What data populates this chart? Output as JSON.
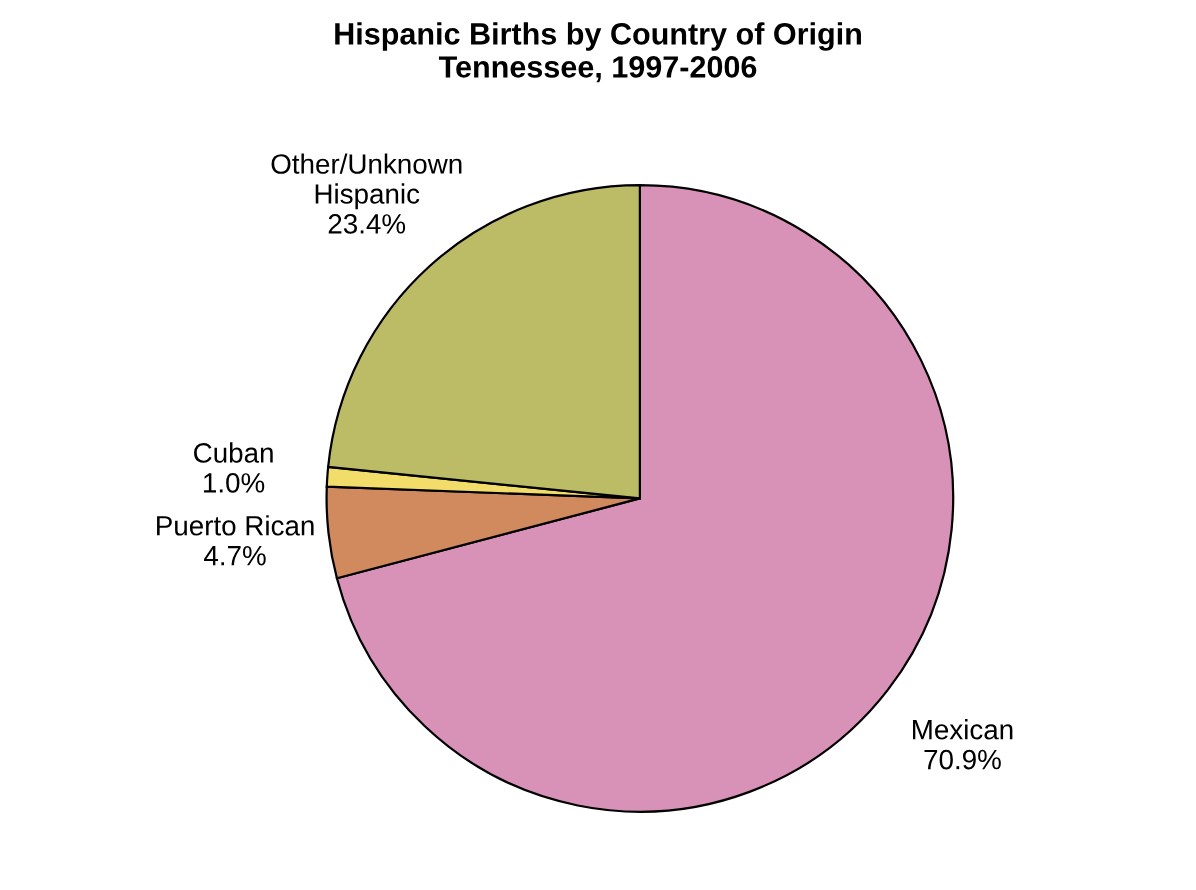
{
  "chart_data": {
    "type": "pie",
    "title": "Hispanic Births by Country of Origin\nTennessee, 1997-2006",
    "categories": [
      "Mexican",
      "Puerto Rican",
      "Cuban",
      "Other/Unknown\nHispanic"
    ],
    "values": [
      70.9,
      4.7,
      1.0,
      23.4
    ],
    "value_labels": [
      "70.9%",
      "4.7%",
      "1.0%",
      "23.4%"
    ],
    "colors": [
      "#d892b8",
      "#d08a5e",
      "#f2dc6a",
      "#bcbc66"
    ]
  }
}
